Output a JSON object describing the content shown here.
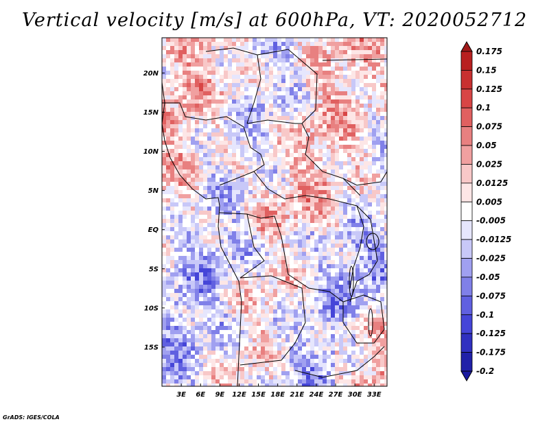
{
  "title": "Vertical velocity [m/s] at 600hPa, VT: 2020052712",
  "credit": "GrADS: IGES/COLA",
  "map": {
    "lat_labels": [
      "20N",
      "15N",
      "10N",
      "5N",
      "EQ",
      "5S",
      "10S",
      "15S"
    ],
    "lat_values": [
      20,
      15,
      10,
      5,
      0,
      -5,
      -10,
      -15
    ],
    "lon_labels": [
      "3E",
      "6E",
      "9E",
      "12E",
      "15E",
      "18E",
      "21E",
      "24E",
      "27E",
      "30E",
      "33E"
    ],
    "lon_values": [
      3,
      6,
      9,
      12,
      15,
      18,
      21,
      24,
      27,
      30,
      33
    ],
    "lon_range": [
      0,
      35
    ],
    "lat_range": [
      -20,
      24.5
    ]
  },
  "colorbar": {
    "labels": [
      "0.175",
      "0.15",
      "0.125",
      "0.1",
      "0.075",
      "0.05",
      "0.025",
      "0.0125",
      "0.005",
      "-0.005",
      "-0.0125",
      "-0.025",
      "-0.05",
      "-0.075",
      "-0.1",
      "-0.125",
      "-0.175",
      "-0.2"
    ],
    "colors": [
      "#a01a1a",
      "#b82020",
      "#c83030",
      "#d84545",
      "#e06060",
      "#e88080",
      "#f0a0a0",
      "#f8c8c8",
      "#fde6e6",
      "#ffffff",
      "#e6e6fd",
      "#c8c8f8",
      "#a0a0f0",
      "#8080e8",
      "#6060e0",
      "#4545d8",
      "#3030c0",
      "#2020a8",
      "#1a1aa0"
    ]
  }
}
